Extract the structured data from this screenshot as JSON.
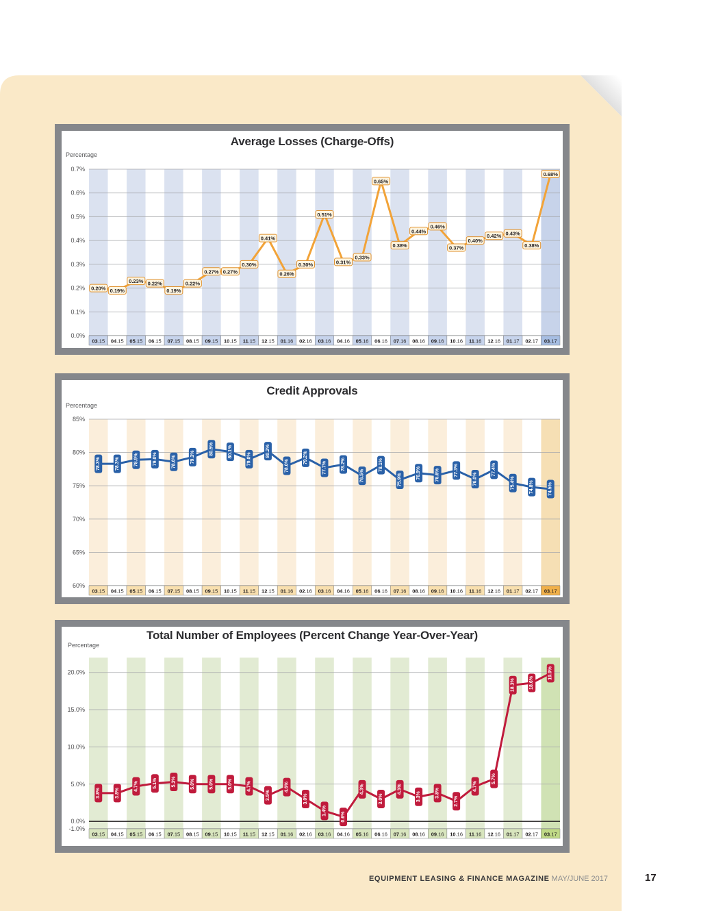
{
  "page": {
    "background_color": "#FAE9C8",
    "footer": {
      "magazine": "EQUIPMENT LEASING & FINANCE MAGAZINE",
      "issue": "MAY/JUNE 2017",
      "page_number": "17"
    }
  },
  "chart_data": [
    {
      "type": "line",
      "title": "Average Losses (Charge-Offs)",
      "ylabel": "Percentage",
      "xlabel": "",
      "grid": true,
      "legend": "none",
      "label_style": "box",
      "markers": false,
      "ylim": [
        0.0,
        0.7
      ],
      "ytick_values": [
        0.7,
        0.6,
        0.5,
        0.4,
        0.3,
        0.2,
        0.1,
        0.0
      ],
      "ytick_labels": [
        "0.7%",
        "0.6%",
        "0.5%",
        "0.4%",
        "0.3%",
        "0.2%",
        "0.1%",
        "0.0%"
      ],
      "categories": [
        "03.15",
        "04.15",
        "05.15",
        "06.15",
        "07.15",
        "08.15",
        "09.15",
        "10.15",
        "11.15",
        "12.15",
        "01.16",
        "02.16",
        "03.16",
        "04.16",
        "05.16",
        "06.16",
        "07.16",
        "08.16",
        "09.16",
        "10.16",
        "11.16",
        "12.16",
        "01.17",
        "02.17",
        "03.17"
      ],
      "values": [
        0.2,
        0.19,
        0.23,
        0.22,
        0.19,
        0.22,
        0.27,
        0.27,
        0.3,
        0.41,
        0.26,
        0.3,
        0.51,
        0.31,
        0.33,
        0.65,
        0.38,
        0.44,
        0.46,
        0.37,
        0.4,
        0.42,
        0.43,
        0.38,
        0.68
      ],
      "point_labels": [
        "0.20%",
        "0.19%",
        "0.23%",
        "0.22%",
        "0.19%",
        "0.22%",
        "0.27%",
        "0.27%",
        "0.30%",
        "0.41%",
        "0.26%",
        "0.30%",
        "0.51%",
        "0.31%",
        "0.33%",
        "0.65%",
        "0.38%",
        "0.44%",
        "0.46%",
        "0.37%",
        "0.40%",
        "0.42%",
        "0.43%",
        "0.38%",
        "0.68%"
      ],
      "colors": {
        "line": "#F2A338",
        "label_bg": "#FDF4DF",
        "label_border": "#E0912D",
        "label_text": "#231F20",
        "stripe": "#DBE2F0",
        "stripe_last": "#C7D3EA",
        "xcell": "#C6D3EB",
        "xcell_last": "#A6BDE2",
        "grid": "#A7A9AC"
      }
    },
    {
      "type": "line",
      "title": "Credit Approvals",
      "ylabel": "Percentage",
      "xlabel": "",
      "grid": true,
      "legend": "none",
      "label_style": "pill",
      "markers": true,
      "ylim": [
        60,
        85
      ],
      "ytick_values": [
        85,
        80,
        75,
        70,
        65,
        60
      ],
      "ytick_labels": [
        "85%",
        "80%",
        "75%",
        "70%",
        "65%",
        "60%"
      ],
      "categories": [
        "03.15",
        "04.15",
        "05.15",
        "06.15",
        "07.15",
        "08.15",
        "09.15",
        "10.15",
        "11.15",
        "12.15",
        "01.16",
        "02.16",
        "03.16",
        "04.16",
        "05.16",
        "06.16",
        "07.16",
        "08.16",
        "09.16",
        "10.16",
        "11.16",
        "12.16",
        "01.17",
        "02.17",
        "03.17"
      ],
      "values": [
        78.3,
        78.3,
        78.9,
        79.0,
        78.6,
        79.3,
        80.5,
        80.1,
        79.0,
        80.2,
        78.0,
        79.2,
        77.7,
        78.2,
        76.5,
        78.1,
        75.9,
        76.9,
        76.6,
        77.3,
        76.0,
        77.4,
        75.4,
        74.8,
        74.5
      ],
      "point_labels": [
        "78.3%",
        "78.3%",
        "78.9%",
        "79.0%",
        "78.6%",
        "79.3%",
        "80.5%",
        "80.1%",
        "79.0%",
        "80.2%",
        "78.0%",
        "79.2%",
        "77.7%",
        "78.2%",
        "76.5%",
        "78.1%",
        "75.9%",
        "76.9%",
        "76.6%",
        "77.3%",
        "76.0%",
        "77.4%",
        "75.4%",
        "74.8%",
        "74.5%"
      ],
      "colors": {
        "line": "#2A61A8",
        "label_text": "#FFFFFF",
        "stripe": "#FBEEDB",
        "stripe_last": "#F6DFB4",
        "xcell": "#F8DFAE",
        "xcell_last": "#F0B04A",
        "grid": "#A7A9AC"
      }
    },
    {
      "type": "line",
      "title": "Total Number of Employees (Percent Change Year-Over-Year)",
      "ylabel": "Percentage",
      "xlabel": "",
      "grid": true,
      "legend": "none",
      "label_style": "pill",
      "markers": true,
      "emphasized_tick": 0,
      "ylim": [
        -1,
        22
      ],
      "ytick_values": [
        20,
        15,
        10,
        5,
        0,
        -1
      ],
      "ytick_labels": [
        "20.0%",
        "15.0%",
        "10.0%",
        "5.0%",
        "0.0%",
        "-1.0%"
      ],
      "categories": [
        "03.15",
        "04.15",
        "05.15",
        "06.15",
        "07.15",
        "08.15",
        "09.15",
        "10.15",
        "11.15",
        "12.15",
        "01.16",
        "02.16",
        "03.16",
        "04.16",
        "05.16",
        "06.16",
        "07.16",
        "08.16",
        "09.16",
        "10.16",
        "11.16",
        "12.16",
        "01.17",
        "02.17",
        "03.17"
      ],
      "values": [
        3.8,
        3.8,
        4.7,
        5.1,
        5.3,
        5.0,
        5.0,
        5.0,
        4.7,
        3.5,
        4.6,
        3.0,
        1.4,
        0.6,
        4.3,
        3.0,
        4.3,
        3.3,
        3.8,
        2.7,
        4.7,
        5.7,
        18.3,
        18.6,
        19.9
      ],
      "point_labels": [
        "3.8%",
        "3.8%",
        "4.7%",
        "5.1%",
        "5.3%",
        "5.0%",
        "5.0%",
        "5.0%",
        "4.7%",
        "3.5%",
        "4.6%",
        "3.0%",
        "1.4%",
        "0.6%",
        "4.3%",
        "3.0%",
        "4.3%",
        "3.3%",
        "3.8%",
        "2.7%",
        "4.7%",
        "5.7%",
        "18.3%",
        "18.6%",
        "19.9%"
      ],
      "colors": {
        "line": "#C01B3C",
        "label_text": "#FFFFFF",
        "stripe": "#E2EBD3",
        "stripe_last": "#D0E2B4",
        "xcell": "#D8E5BE",
        "xcell_last": "#BFD986",
        "grid": "#A7A9AC"
      }
    }
  ]
}
